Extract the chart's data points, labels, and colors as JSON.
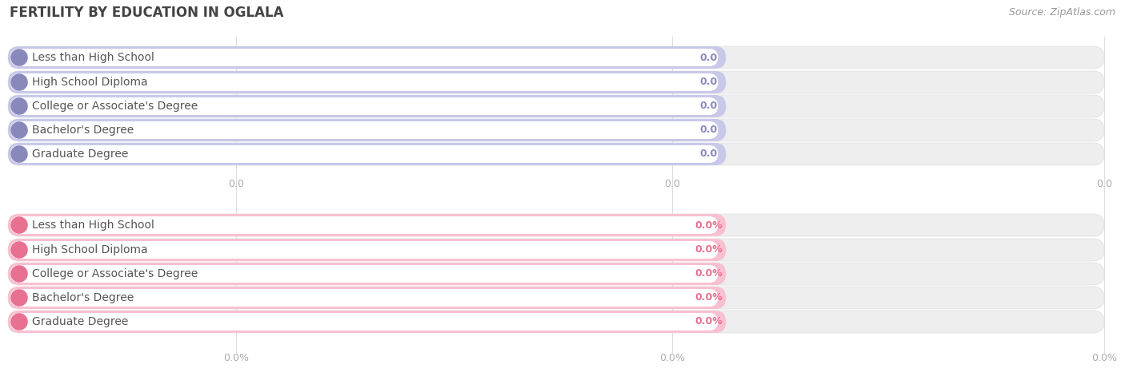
{
  "title": "FERTILITY BY EDUCATION IN OGLALA",
  "source": "Source: ZipAtlas.com",
  "categories": [
    "Less than High School",
    "High School Diploma",
    "College or Associate's Degree",
    "Bachelor's Degree",
    "Graduate Degree"
  ],
  "top_values": [
    0.0,
    0.0,
    0.0,
    0.0,
    0.0
  ],
  "bottom_values": [
    0.0,
    0.0,
    0.0,
    0.0,
    0.0
  ],
  "top_color": "#b0b0d8",
  "top_color_light": "#c8c8e8",
  "top_color_dark": "#8888bb",
  "bottom_color": "#f5a0b8",
  "bottom_color_light": "#f8c0d0",
  "bottom_color_dark": "#e87090",
  "bar_bg_color": "#eeeeee",
  "bg_color": "#ffffff",
  "title_color": "#444444",
  "source_color": "#999999",
  "label_color": "#555555",
  "value_label_top_color": "#8888bb",
  "value_label_bottom_color": "#e87090",
  "axis_label_color": "#aaaaaa",
  "grid_color": "#dddddd",
  "white_pill_color": "#ffffff",
  "title_fontsize": 12,
  "bar_label_fontsize": 10,
  "value_fontsize": 9,
  "axis_fontsize": 9,
  "source_fontsize": 9
}
